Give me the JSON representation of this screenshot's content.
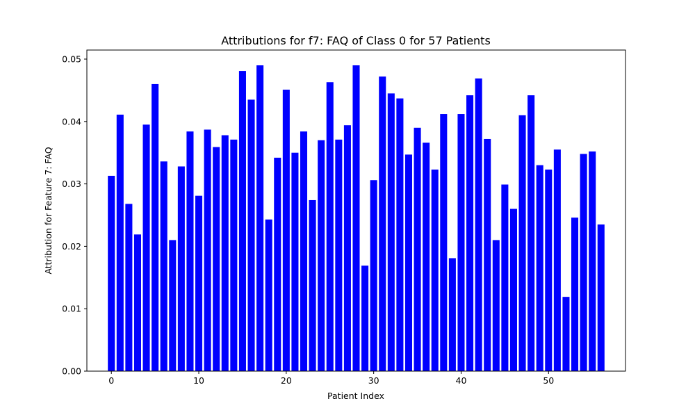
{
  "chart_data": {
    "type": "bar",
    "title": "Attributions for f7: FAQ of Class 0 for 57 Patients",
    "xlabel": "Patient Index",
    "ylabel": "Attribution for Feature 7: FAQ",
    "x": [
      0,
      1,
      2,
      3,
      4,
      5,
      6,
      7,
      8,
      9,
      10,
      11,
      12,
      13,
      14,
      15,
      16,
      17,
      18,
      19,
      20,
      21,
      22,
      23,
      24,
      25,
      26,
      27,
      28,
      29,
      30,
      31,
      32,
      33,
      34,
      35,
      36,
      37,
      38,
      39,
      40,
      41,
      42,
      43,
      44,
      45,
      46,
      47,
      48,
      49,
      50,
      51,
      52,
      53,
      54,
      55,
      56
    ],
    "values": [
      0.0313,
      0.0411,
      0.0268,
      0.0219,
      0.0395,
      0.046,
      0.0336,
      0.021,
      0.0328,
      0.0384,
      0.0281,
      0.0387,
      0.0359,
      0.0378,
      0.0371,
      0.0481,
      0.0435,
      0.049,
      0.0243,
      0.0342,
      0.0451,
      0.035,
      0.0384,
      0.0274,
      0.037,
      0.0463,
      0.0371,
      0.0394,
      0.049,
      0.0169,
      0.0306,
      0.0472,
      0.0445,
      0.0437,
      0.0347,
      0.039,
      0.0366,
      0.0323,
      0.0412,
      0.0181,
      0.0412,
      0.0442,
      0.0469,
      0.0372,
      0.021,
      0.0299,
      0.026,
      0.041,
      0.0442,
      0.033,
      0.0323,
      0.0355,
      0.0119,
      0.0246,
      0.0348,
      0.0352,
      0.0235
    ],
    "xlim": [
      -2.8,
      58.8
    ],
    "ylim": [
      0,
      0.05145
    ],
    "xticks": [
      0,
      10,
      20,
      30,
      40,
      50
    ],
    "xtick_labels": [
      "0",
      "10",
      "20",
      "30",
      "40",
      "50"
    ],
    "yticks": [
      0.0,
      0.01,
      0.02,
      0.03,
      0.04,
      0.05
    ],
    "ytick_labels": [
      "0.00",
      "0.01",
      "0.02",
      "0.03",
      "0.04",
      "0.05"
    ],
    "grid": false,
    "bar_color": "#0000ff"
  }
}
